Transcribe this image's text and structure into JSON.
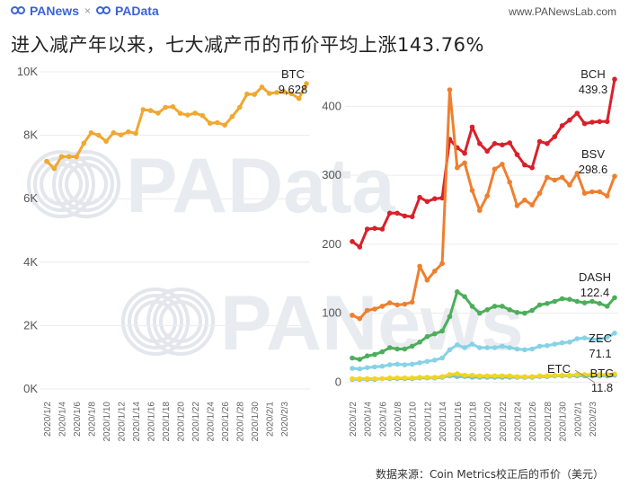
{
  "header": {
    "brand_left": "PANews",
    "brand_sep": "×",
    "brand_right": "PAData",
    "site": "www.PANewsLab.com"
  },
  "title": "进入减产年以来，七大减产币的币价平均上涨143.76%",
  "source": "数据来源：Coin Metrics校正后的币价（美元）",
  "watermarks": [
    "PAData",
    "PANews"
  ],
  "colors": {
    "BTC": "#f0a830",
    "BCH": "#d9202b",
    "BSV": "#ef7f2f",
    "DASH": "#4cae5a",
    "ZEC": "#86d2e6",
    "ETC": "#79c2c4",
    "BTG": "#f1d51f"
  },
  "chart_data": [
    {
      "type": "line",
      "x_tick_labels": [
        "2020/1/2",
        "2020/1/4",
        "2020/1/6",
        "2020/1/8",
        "2020/1/10",
        "2020/1/12",
        "2020/1/14",
        "2020/1/16",
        "2020/1/18",
        "2020/1/20",
        "2020/1/22",
        "2020/1/24",
        "2020/1/26",
        "2020/1/28",
        "2020/1/30",
        "2020/2/1",
        "2020/2/3"
      ],
      "y_ticks": [
        0,
        2000,
        4000,
        6000,
        8000,
        10000
      ],
      "y_tick_labels": [
        "0K",
        "2K",
        "4K",
        "6K",
        "8K",
        "10K"
      ],
      "ylim": [
        0,
        10000
      ],
      "grid": true,
      "series": [
        {
          "name": "BTC",
          "end_label": "9,628",
          "values": [
            7180,
            6950,
            7330,
            7330,
            7320,
            7750,
            8080,
            8000,
            7810,
            8080,
            8010,
            8110,
            8060,
            8810,
            8780,
            8700,
            8880,
            8900,
            8690,
            8640,
            8700,
            8620,
            8380,
            8400,
            8320,
            8590,
            8880,
            9300,
            9290,
            9520,
            9320,
            9350,
            9370,
            9310,
            9160,
            9628
          ]
        }
      ]
    },
    {
      "type": "line",
      "x_tick_labels": [
        "2020/1/2",
        "2020/1/4",
        "2020/1/6",
        "2020/1/8",
        "2020/1/10",
        "2020/1/12",
        "2020/1/14",
        "2020/1/16",
        "2020/1/18",
        "2020/1/20",
        "2020/1/22",
        "2020/1/24",
        "2020/1/26",
        "2020/1/28",
        "2020/1/30",
        "2020/2/1",
        "2020/2/3"
      ],
      "y_ticks": [
        0,
        100,
        200,
        300,
        400
      ],
      "y_tick_labels": [
        "0",
        "100",
        "200",
        "300",
        "400"
      ],
      "ylim": [
        -10,
        450
      ],
      "grid": true,
      "series": [
        {
          "name": "BCH",
          "end_label": "439.3",
          "values": [
            204,
            196,
            222,
            223,
            222,
            245,
            245,
            241,
            240,
            268,
            262,
            266,
            267,
            352,
            340,
            332,
            370,
            346,
            335,
            346,
            344,
            347,
            330,
            315,
            311,
            349,
            346,
            356,
            372,
            380,
            390,
            375,
            377,
            378,
            378,
            439.3
          ]
        },
        {
          "name": "BSV",
          "end_label": "298.6",
          "values": [
            97,
            92,
            104,
            106,
            110,
            115,
            112,
            113,
            116,
            168,
            148,
            161,
            172,
            424,
            311,
            318,
            278,
            249,
            270,
            309,
            316,
            290,
            256,
            264,
            257,
            274,
            297,
            293,
            297,
            286,
            303,
            274,
            276,
            276,
            270,
            298.6
          ]
        },
        {
          "name": "DASH",
          "end_label": "122.4",
          "values": [
            35,
            33,
            38,
            40,
            44,
            50,
            48,
            48,
            52,
            58,
            66,
            70,
            74,
            95,
            131,
            124,
            110,
            100,
            105,
            110,
            110,
            105,
            101,
            100,
            104,
            112,
            114,
            117,
            121,
            120,
            117,
            115,
            117,
            114,
            110,
            122.4
          ]
        },
        {
          "name": "ZEC",
          "end_label": "71.1",
          "values": [
            20,
            19,
            21,
            22,
            23,
            25,
            26,
            25,
            26,
            28,
            30,
            32,
            35,
            47,
            54,
            50,
            55,
            50,
            50,
            50,
            52,
            50,
            48,
            47,
            48,
            52,
            53,
            55,
            57,
            58,
            63,
            64,
            62,
            62,
            65,
            71.1
          ]
        },
        {
          "name": "ETC",
          "end_label": "",
          "values": [
            4,
            4,
            4,
            4,
            5,
            5,
            5,
            5,
            5,
            6,
            6,
            6,
            7,
            9,
            8,
            8,
            7,
            7,
            7,
            7,
            7,
            7,
            7,
            7,
            7,
            8,
            8,
            9,
            9,
            9,
            9,
            9,
            9,
            9,
            9,
            10
          ]
        },
        {
          "name": "BTG",
          "end_label": "11.8",
          "values": [
            5,
            5,
            5,
            5,
            5,
            6,
            6,
            6,
            6,
            7,
            7,
            7,
            8,
            11,
            12,
            10,
            10,
            9,
            9,
            9,
            9,
            9,
            8,
            8,
            8,
            9,
            9,
            10,
            10,
            10,
            11,
            11,
            11,
            11,
            11,
            11.8
          ]
        }
      ],
      "annotations": [
        {
          "text": "ETC"
        },
        {
          "text": "BTG"
        }
      ]
    }
  ]
}
